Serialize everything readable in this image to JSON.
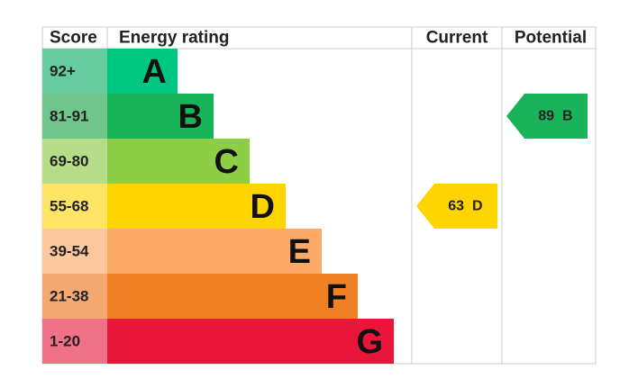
{
  "header": {
    "score": "Score",
    "energy_rating": "Energy rating",
    "current": "Current",
    "potential": "Potential"
  },
  "bands": [
    {
      "score": "92+",
      "letter": "A",
      "color": "#00c781",
      "score_color": "#67cba0"
    },
    {
      "score": "81-91",
      "letter": "B",
      "color": "#19b459",
      "score_color": "#6fc58b"
    },
    {
      "score": "69-80",
      "letter": "C",
      "color": "#8dce46",
      "score_color": "#b6de8a"
    },
    {
      "score": "55-68",
      "letter": "D",
      "color": "#ffd500",
      "score_color": "#ffe566"
    },
    {
      "score": "39-54",
      "letter": "E",
      "color": "#fcaa65",
      "score_color": "#fcc8a0"
    },
    {
      "score": "21-38",
      "letter": "F",
      "color": "#ef8023",
      "score_color": "#f4a872"
    },
    {
      "score": "1-20",
      "letter": "G",
      "color": "#e9153b",
      "score_color": "#f07289"
    }
  ],
  "current": {
    "value": 63,
    "rating": "D"
  },
  "potential": {
    "value": 89,
    "rating": "B"
  }
}
